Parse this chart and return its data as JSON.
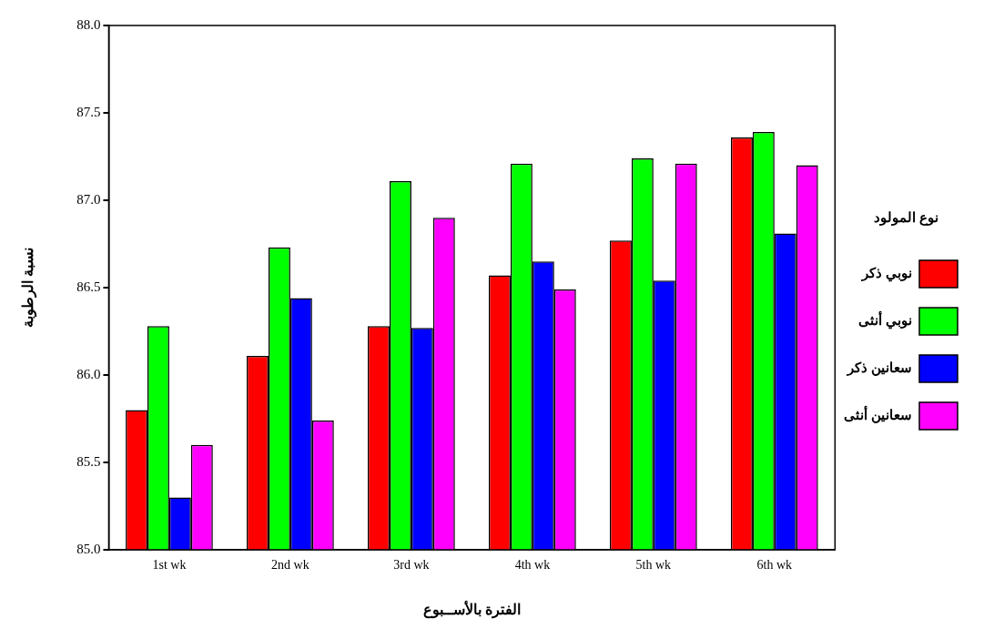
{
  "chart_data": {
    "type": "bar",
    "xlabel": "الفترة بالأســبوع",
    "ylabel": "نسبة الرطوبة",
    "legend_title": "نوع المولود",
    "categories": [
      "1st wk",
      "2nd wk",
      "3rd wk",
      "4th wk",
      "5th wk",
      "6th wk"
    ],
    "series": [
      {
        "name": "نوبي ذكر",
        "color": "#ff0000",
        "values": [
          85.8,
          86.11,
          86.28,
          86.57,
          86.77,
          87.36
        ]
      },
      {
        "name": "نوبي أنثى",
        "color": "#00ff00",
        "values": [
          86.28,
          86.73,
          87.11,
          87.21,
          87.24,
          87.39
        ]
      },
      {
        "name": "سعانين ذكر",
        "color": "#0000ff",
        "values": [
          85.3,
          86.44,
          86.27,
          86.65,
          86.54,
          86.81
        ]
      },
      {
        "name": "سعانين أنثى",
        "color": "#ff00ff",
        "values": [
          85.6,
          85.74,
          86.9,
          86.49,
          87.21,
          87.2
        ]
      }
    ],
    "ylim": [
      85.0,
      88.0
    ],
    "yticks": [
      {
        "value": 85,
        "label": "85.0"
      },
      85.5,
      {
        "value": 86,
        "label": "86.0"
      },
      86.5,
      {
        "value": 87,
        "label": "87.0"
      },
      87.5,
      {
        "value": 88,
        "label": "88.0"
      }
    ],
    "grid": false,
    "legend": "right"
  }
}
